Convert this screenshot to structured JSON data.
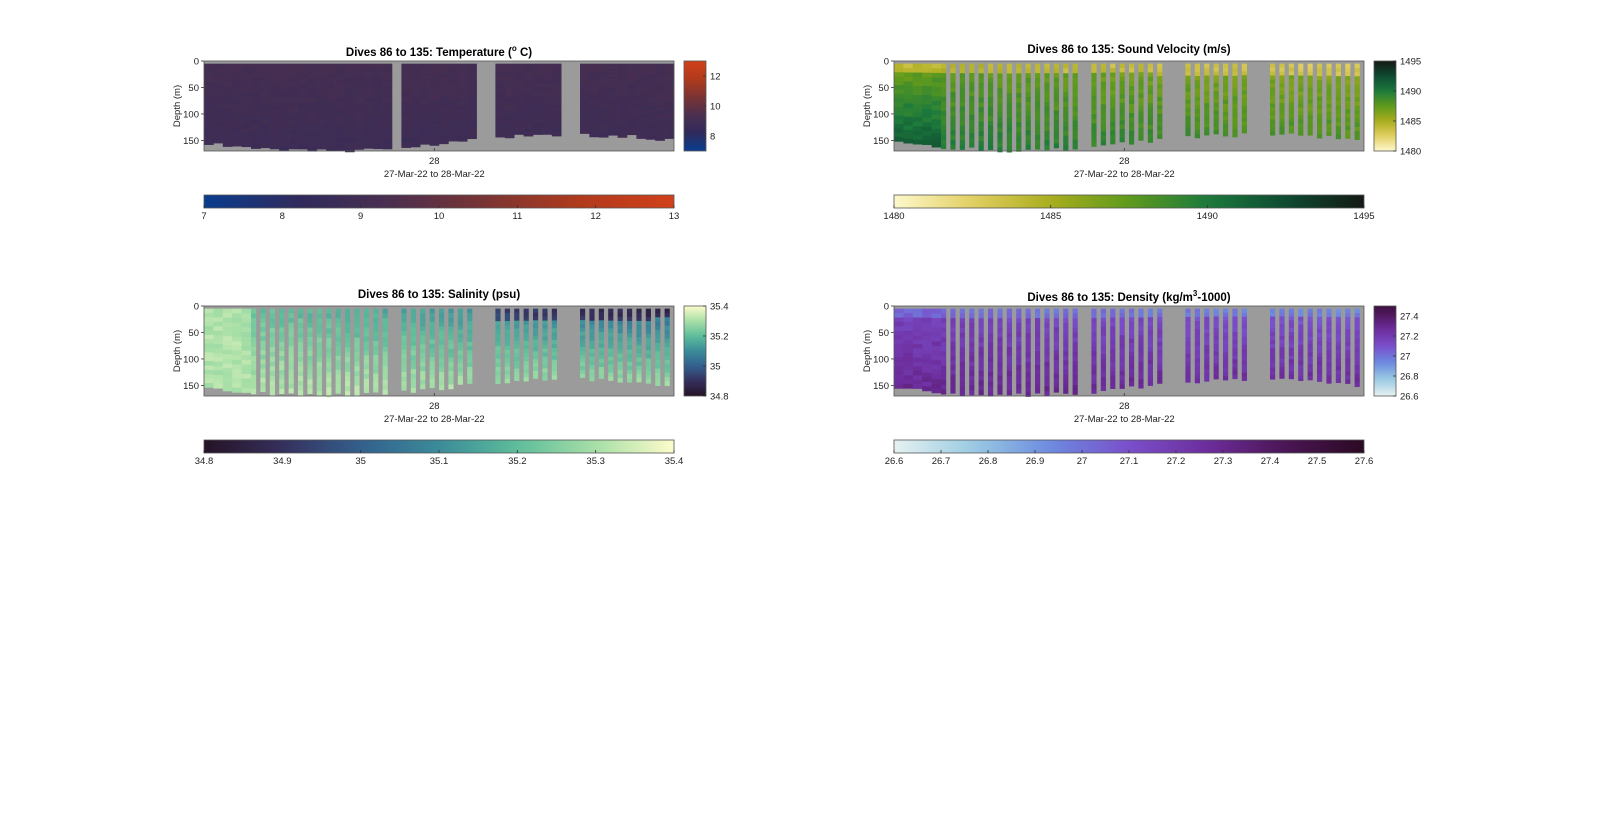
{
  "colors": {
    "background": "#ffffff",
    "nodata": "#9b9b9b",
    "axis": "#333333"
  },
  "chart_data": [
    {
      "id": "temp",
      "type": "heatmap",
      "title": "Dives 86 to 135: Temperature (",
      "title_sup": "o",
      "title_end": " C)",
      "ylabel": "Depth (m)",
      "yticks": [
        "0",
        "50",
        "100",
        "150"
      ],
      "ytick_values": [
        0,
        50,
        100,
        150
      ],
      "ylim": [
        0,
        170
      ],
      "xtick": "28",
      "xlabel": "27-Mar-22 to 28-Mar-22",
      "colormap": [
        "#093d8f",
        "#2f2a5c",
        "#4b2f4f",
        "#7a3433",
        "#b13a1c",
        "#d1401a"
      ],
      "clim": [
        7,
        13
      ],
      "side_colorbar_ticks": [
        "8",
        "10",
        "12"
      ],
      "side_colorbar_values": [
        8,
        10,
        12
      ],
      "bottom_colorbar_ticks": [
        "7",
        "8",
        "9",
        "10",
        "11",
        "12",
        "13"
      ],
      "bottom_colorbar_values": [
        7,
        8,
        9,
        10,
        11,
        12,
        13
      ],
      "style": "continuous"
    },
    {
      "id": "sv",
      "type": "heatmap",
      "title": "Dives 86 to 135: Sound Velocity (m/s)",
      "ylabel": "Depth (m)",
      "yticks": [
        "0",
        "50",
        "100",
        "150"
      ],
      "ytick_values": [
        0,
        50,
        100,
        150
      ],
      "ylim": [
        0,
        170
      ],
      "xtick": "28",
      "xlabel": "27-Mar-22 to 28-Mar-22",
      "colormap": [
        "#fdf8cc",
        "#e2cf62",
        "#a9ad1d",
        "#5f9a1d",
        "#1c7a3c",
        "#0e4a32",
        "#141a14"
      ],
      "clim": [
        1480,
        1495
      ],
      "side_colorbar_ticks": [
        "1480",
        "1485",
        "1490",
        "1495"
      ],
      "side_colorbar_values": [
        1480,
        1485,
        1490,
        1495
      ],
      "bottom_colorbar_ticks": [
        "1480",
        "1485",
        "1490",
        "1495"
      ],
      "bottom_colorbar_values": [
        1480,
        1485,
        1490,
        1495
      ],
      "style": "bars"
    },
    {
      "id": "sal",
      "type": "heatmap",
      "title": "Dives 86 to 135: Salinity (psu)",
      "ylabel": "Depth (m)",
      "yticks": [
        "0",
        "50",
        "100",
        "150"
      ],
      "ytick_values": [
        0,
        50,
        100,
        150
      ],
      "ylim": [
        0,
        170
      ],
      "xtick": "28",
      "xlabel": "27-Mar-22 to 28-Mar-22",
      "colormap": [
        "#251326",
        "#362f5c",
        "#33608e",
        "#3b8b9a",
        "#5dbd9a",
        "#a8dfa7",
        "#fdfccb"
      ],
      "clim": [
        34.8,
        35.4
      ],
      "side_colorbar_ticks": [
        "34.8",
        "35",
        "35.2",
        "35.4"
      ],
      "side_colorbar_values": [
        34.8,
        35,
        35.2,
        35.4
      ],
      "bottom_colorbar_ticks": [
        "34.8",
        "34.9",
        "35",
        "35.1",
        "35.2",
        "35.3",
        "35.4"
      ],
      "bottom_colorbar_values": [
        34.8,
        34.9,
        35,
        35.1,
        35.2,
        35.3,
        35.4
      ],
      "style": "bars"
    },
    {
      "id": "den",
      "type": "heatmap",
      "title": "Dives 86 to 135: Density (kg/m",
      "title_sup": "3",
      "title_end": "-1000)",
      "ylabel": "Depth (m)",
      "yticks": [
        "0",
        "50",
        "100",
        "150"
      ],
      "ytick_values": [
        0,
        50,
        100,
        150
      ],
      "ylim": [
        0,
        170
      ],
      "xtick": "28",
      "xlabel": "27-Mar-22 to 28-Mar-22",
      "colormap": [
        "#e6f1f1",
        "#9bcbe2",
        "#6b8ae0",
        "#7a4fcb",
        "#6d2d9c",
        "#4a1554",
        "#2b0a22"
      ],
      "clim": [
        26.6,
        27.6
      ],
      "side_colorbar_ticks": [
        "26.6",
        "26.8",
        "27",
        "27.2",
        "27.4"
      ],
      "side_colorbar_values": [
        26.6,
        26.8,
        27,
        27.2,
        27.4
      ],
      "side_colorbar_clim": [
        26.6,
        27.5
      ],
      "bottom_colorbar_ticks": [
        "26.6",
        "26.7",
        "26.8",
        "26.9",
        "27",
        "27.1",
        "27.2",
        "27.3",
        "27.4",
        "27.5",
        "27.6"
      ],
      "bottom_colorbar_values": [
        26.6,
        26.7,
        26.8,
        26.9,
        27,
        27.1,
        27.2,
        27.3,
        27.4,
        27.5,
        27.6
      ],
      "style": "bars"
    }
  ]
}
